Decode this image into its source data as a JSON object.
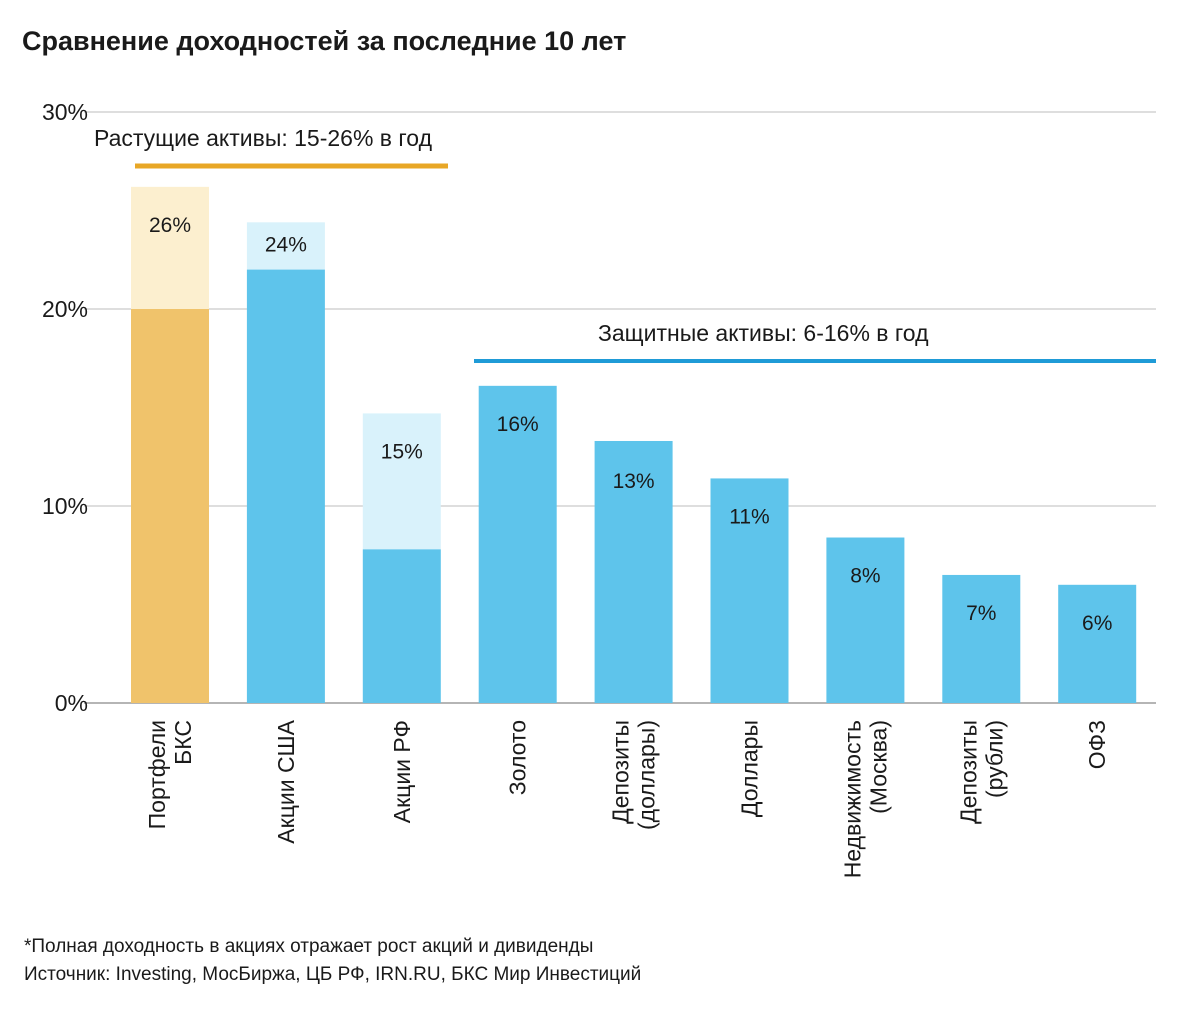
{
  "chart_data": {
    "type": "bar",
    "title": "Сравнение доходностей за последние 10 лет",
    "ylim": [
      0,
      30
    ],
    "yticks": [
      0,
      10,
      20,
      30
    ],
    "ytick_labels": [
      "0%",
      "10%",
      "20%",
      "30%"
    ],
    "grid": true,
    "categories": [
      [
        "Портфели",
        "БКС"
      ],
      [
        "Акции США"
      ],
      [
        "Акции РФ"
      ],
      [
        "Золото"
      ],
      [
        "Депозиты",
        "(доллары)"
      ],
      [
        "Доллары"
      ],
      [
        "Недвижимость",
        "(Москва)"
      ],
      [
        "Депозиты",
        "(рубли)"
      ],
      [
        "ОФЗ"
      ]
    ],
    "values": [
      26.2,
      24.4,
      14.7,
      16.1,
      13.3,
      11.4,
      8.4,
      6.5,
      6.0
    ],
    "solid_values": [
      20.0,
      22.0,
      7.8,
      16.1,
      13.3,
      11.4,
      8.4,
      6.5,
      6.0
    ],
    "data_labels": [
      "26%",
      "24%",
      "15%",
      "16%",
      "13%",
      "11%",
      "8%",
      "7%",
      "6%"
    ],
    "bar_groups": [
      "growth",
      "growth",
      "growth",
      "protective",
      "protective",
      "protective",
      "protective",
      "protective",
      "protective"
    ],
    "annotations": [
      {
        "text": "Растущие активы: 15-26% в год",
        "group": "growth",
        "range": [
          15,
          26
        ],
        "color": "#e8a726"
      },
      {
        "text": "Защитные активы: 6-16% в год",
        "group": "protective",
        "range": [
          6,
          16
        ],
        "color": "#1f9bd7"
      }
    ],
    "colors": {
      "growth_solid": "#f0c36b",
      "growth_light": "#fcefcf",
      "blue_solid": "#5ec4eb",
      "blue_light": "#d9f2fb"
    },
    "footnotes": [
      "*Полная доходность в акциях отражает рост акций и дивиденды",
      "Источник: Investing, МосБиржа, ЦБ РФ, IRN.RU, БКС Мир Инвестиций"
    ]
  }
}
